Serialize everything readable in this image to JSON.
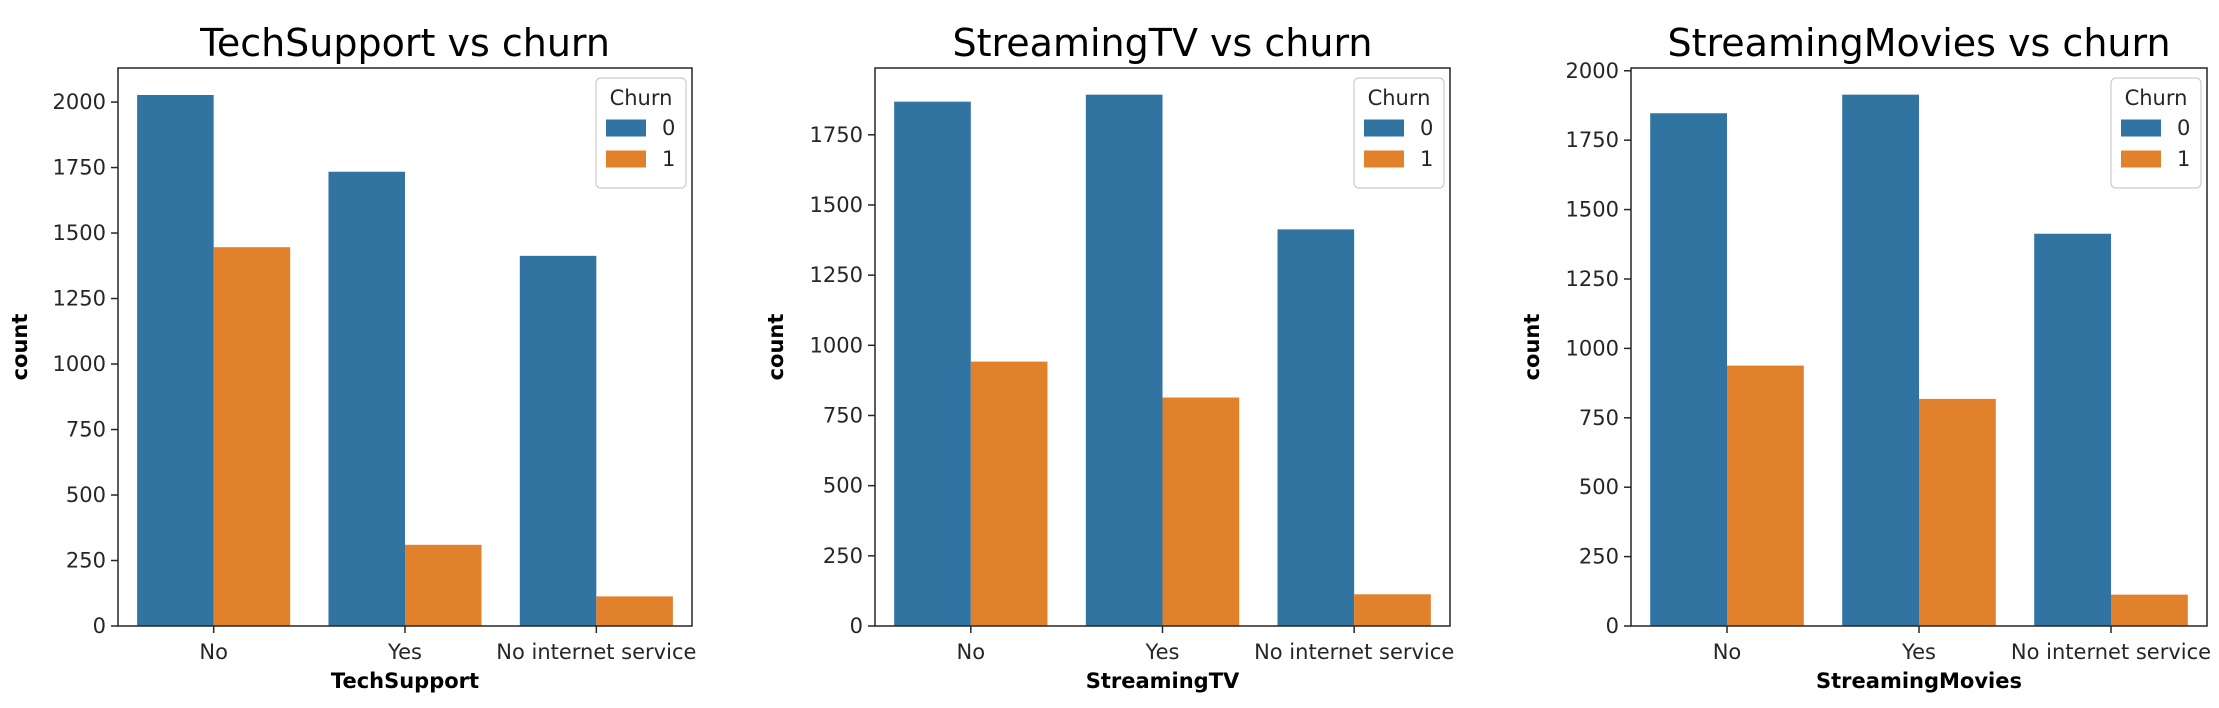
{
  "chart_data": [
    {
      "type": "bar",
      "title": "TechSupport vs churn",
      "xlabel": "TechSupport",
      "ylabel": "count",
      "categories": [
        "No",
        "Yes",
        "No internet service"
      ],
      "series": [
        {
          "name": "0",
          "values": [
            2027,
            1734,
            1413
          ],
          "color": "#3274a1"
        },
        {
          "name": "1",
          "values": [
            1446,
            310,
            113
          ],
          "color": "#e1812c"
        }
      ],
      "ylim": [
        0,
        2130
      ],
      "yticks": [
        0,
        250,
        500,
        750,
        1000,
        1250,
        1500,
        1750,
        2000
      ],
      "legend": {
        "title": "Churn",
        "position": "top-right"
      },
      "grid": false
    },
    {
      "type": "bar",
      "title": "StreamingTV vs churn",
      "xlabel": "StreamingTV",
      "ylabel": "count",
      "categories": [
        "No",
        "Yes",
        "No internet service"
      ],
      "series": [
        {
          "name": "0",
          "values": [
            1868,
            1893,
            1413
          ],
          "color": "#3274a1"
        },
        {
          "name": "1",
          "values": [
            942,
            814,
            113
          ],
          "color": "#e1812c"
        }
      ],
      "ylim": [
        0,
        1988
      ],
      "yticks": [
        0,
        250,
        500,
        750,
        1000,
        1250,
        1500,
        1750
      ],
      "legend": {
        "title": "Churn",
        "position": "top-right"
      },
      "grid": false
    },
    {
      "type": "bar",
      "title": "StreamingMovies vs churn",
      "xlabel": "StreamingMovies",
      "ylabel": "count",
      "categories": [
        "No",
        "Yes",
        "No internet service"
      ],
      "series": [
        {
          "name": "0",
          "values": [
            1847,
            1914,
            1413
          ],
          "color": "#3274a1"
        },
        {
          "name": "1",
          "values": [
            938,
            818,
            113
          ],
          "color": "#e1812c"
        }
      ],
      "ylim": [
        0,
        2010
      ],
      "yticks": [
        0,
        250,
        500,
        750,
        1000,
        1250,
        1500,
        1750,
        2000
      ],
      "legend": {
        "title": "Churn",
        "position": "top-right"
      },
      "grid": false
    }
  ]
}
